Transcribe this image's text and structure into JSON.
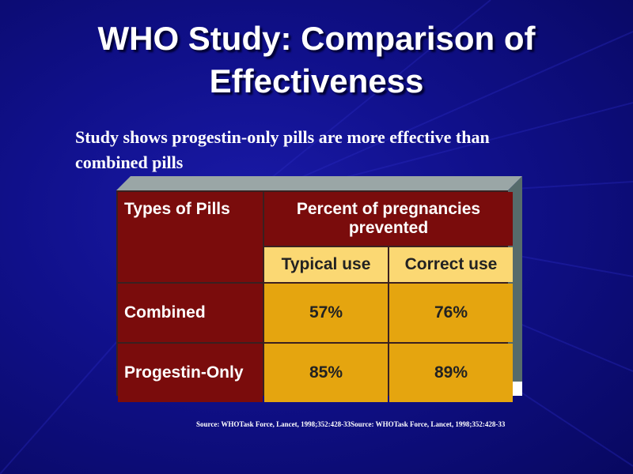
{
  "slide": {
    "title_line1": "WHO Study: Comparison of",
    "title_line2": "Effectiveness",
    "subtitle": "Study shows progestin-only pills are more effective than combined pills",
    "source": "Source: WHOTask Force, Lancet, 1998;352:428-33Source: WHOTask Force, Lancet, 1998;352:428-33"
  },
  "table": {
    "types_header": "Types of Pills",
    "percent_header": "Percent of pregnancies prevented",
    "typical_header": "Typical use",
    "correct_header": "Correct use",
    "rows": [
      {
        "label": "Combined",
        "typical": "57%",
        "correct": "76%"
      },
      {
        "label": "Progestin-Only",
        "typical": "85%",
        "correct": "89%"
      }
    ]
  },
  "colors": {
    "background": "#10108a",
    "header_dark_red": "#7a0c0c",
    "header_light_yellow": "#fbd873",
    "cell_gold": "#e5a50f",
    "bevel_gray": "#566b6b"
  }
}
